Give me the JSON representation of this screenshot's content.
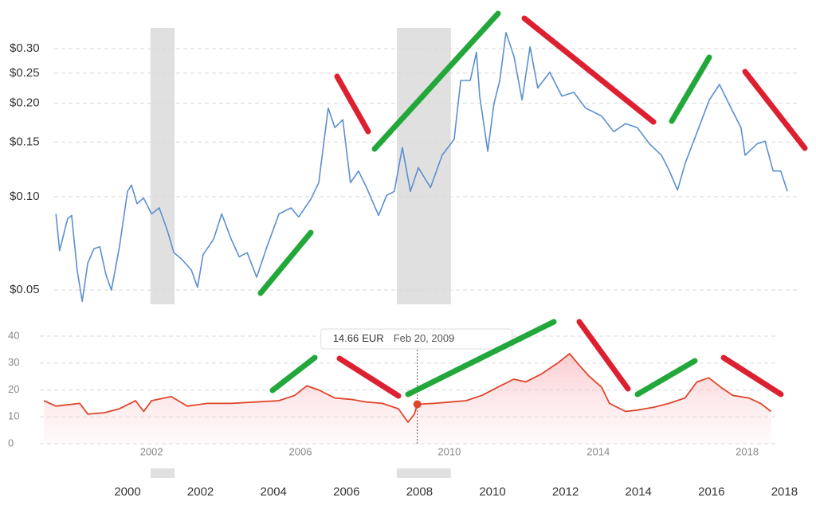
{
  "chart_data": [
    {
      "type": "line",
      "yscale": "log",
      "grid": true,
      "color": "#5b8fd0",
      "shade_color": "#e0e0e0",
      "xlim": [
        1998,
        2018.1
      ],
      "xticks": [
        2000,
        2002,
        2004,
        2006,
        2008,
        2010,
        2012,
        2014,
        2016,
        2018
      ],
      "ylim": [
        0.045,
        0.35
      ],
      "yticks": [
        {
          "value": 0.05,
          "label": "$0.05"
        },
        {
          "value": 0.1,
          "label": "$0.10"
        },
        {
          "value": 0.15,
          "label": "$0.15"
        },
        {
          "value": 0.2,
          "label": "$0.20"
        },
        {
          "value": 0.25,
          "label": "$0.25"
        },
        {
          "value": 0.3,
          "label": "$0.30"
        }
      ],
      "shaded": [
        [
          2000.63,
          2001.29
        ],
        [
          2007.38,
          2008.86
        ]
      ],
      "x": [
        1998.04,
        1998.14,
        1998.36,
        1998.47,
        1998.62,
        1998.76,
        1998.91,
        1999.08,
        1999.24,
        1999.41,
        1999.56,
        1999.78,
        2000.0,
        2000.11,
        2000.26,
        2000.44,
        2000.66,
        2000.87,
        2001.09,
        2001.27,
        2001.48,
        2001.75,
        2001.92,
        2002.07,
        2002.36,
        2002.58,
        2002.84,
        2003.06,
        2003.28,
        2003.54,
        2003.82,
        2004.15,
        2004.48,
        2004.69,
        2005.02,
        2005.24,
        2005.5,
        2005.68,
        2005.9,
        2006.11,
        2006.33,
        2006.55,
        2006.88,
        2007.1,
        2007.31,
        2007.53,
        2007.75,
        2007.97,
        2008.3,
        2008.62,
        2008.95,
        2009.13,
        2009.39,
        2009.56,
        2009.65,
        2009.87,
        2010.04,
        2010.2,
        2010.37,
        2010.59,
        2010.81,
        2011.03,
        2011.24,
        2011.57,
        2011.9,
        2012.23,
        2012.55,
        2012.99,
        2013.32,
        2013.65,
        2013.97,
        2014.3,
        2014.63,
        2014.85,
        2015.07,
        2015.28,
        2015.61,
        2015.94,
        2016.22,
        2016.48,
        2016.81,
        2016.92,
        2017.25,
        2017.47,
        2017.69,
        2017.9,
        2018.08
      ],
      "series": [
        {
          "values": [
            0.088,
            0.067,
            0.085,
            0.087,
            0.058,
            0.046,
            0.061,
            0.068,
            0.069,
            0.056,
            0.05,
            0.069,
            0.104,
            0.109,
            0.095,
            0.099,
            0.088,
            0.092,
            0.078,
            0.066,
            0.063,
            0.058,
            0.051,
            0.065,
            0.073,
            0.088,
            0.073,
            0.064,
            0.066,
            0.055,
            0.069,
            0.088,
            0.092,
            0.086,
            0.098,
            0.111,
            0.193,
            0.167,
            0.177,
            0.111,
            0.121,
            0.107,
            0.087,
            0.101,
            0.104,
            0.144,
            0.104,
            0.124,
            0.107,
            0.136,
            0.153,
            0.237,
            0.237,
            0.292,
            0.211,
            0.14,
            0.199,
            0.237,
            0.338,
            0.283,
            0.205,
            0.304,
            0.224,
            0.252,
            0.211,
            0.217,
            0.193,
            0.182,
            0.162,
            0.172,
            0.167,
            0.148,
            0.136,
            0.121,
            0.105,
            0.128,
            0.162,
            0.205,
            0.23,
            0.199,
            0.167,
            0.136,
            0.148,
            0.151,
            0.121,
            0.121,
            0.104
          ]
        }
      ]
    },
    {
      "type": "area",
      "grid": true,
      "color": "#e0452a",
      "xlim": [
        1999,
        2018.8
      ],
      "xticks": [
        2002,
        2006,
        2010,
        2014,
        2018
      ],
      "ylim": [
        0,
        40
      ],
      "yticks": [
        0,
        10,
        20,
        30,
        40
      ],
      "x": [
        1999.11,
        1999.43,
        2000.07,
        2000.29,
        2000.72,
        2001.14,
        2001.57,
        2001.79,
        2002.0,
        2002.53,
        2002.96,
        2003.5,
        2004.14,
        2004.78,
        2005.42,
        2005.85,
        2006.17,
        2006.49,
        2006.92,
        2007.35,
        2007.78,
        2008.2,
        2008.63,
        2008.89,
        2009.06,
        2009.14,
        2009.59,
        2010.02,
        2010.45,
        2010.88,
        2011.3,
        2011.73,
        2012.05,
        2012.48,
        2012.91,
        2013.23,
        2013.44,
        2013.76,
        2014.09,
        2014.3,
        2014.73,
        2015.05,
        2015.48,
        2015.9,
        2016.33,
        2016.65,
        2016.97,
        2017.29,
        2017.61,
        2018.04,
        2018.36,
        2018.64
      ],
      "series": [
        {
          "values": [
            16,
            14,
            15,
            11,
            11.5,
            13,
            16,
            12,
            16,
            17.5,
            14,
            15,
            15,
            15.5,
            16,
            18,
            21.5,
            20,
            17,
            16.5,
            15.5,
            15,
            13,
            8,
            11,
            14.66,
            15,
            15.5,
            16,
            18,
            21,
            24,
            23,
            26,
            30,
            33.5,
            30,
            25,
            21,
            15,
            12,
            12.5,
            13.5,
            15,
            17,
            23,
            24.5,
            21,
            18,
            17,
            15,
            12
          ]
        }
      ],
      "tooltip": {
        "value": 14.66,
        "unit": "EUR",
        "date": "Feb 20, 2009"
      }
    }
  ]
}
